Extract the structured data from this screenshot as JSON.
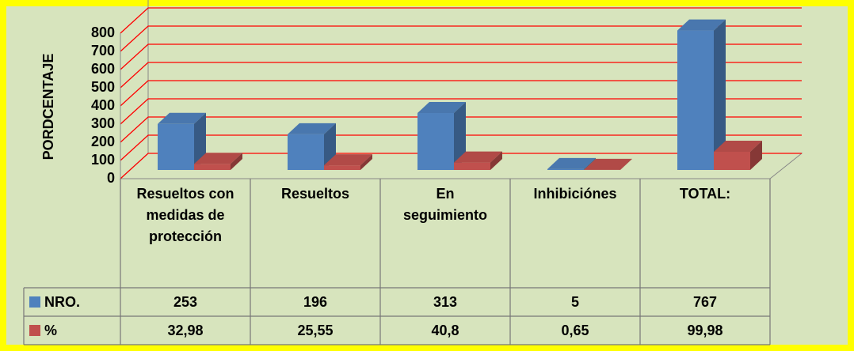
{
  "chart_data": {
    "type": "bar3d",
    "y_label": "PORDCENTAJE",
    "categories": [
      "Resueltos con medidas de protección",
      "Resueltos",
      "En seguimiento",
      "Inhibiciónes",
      "TOTAL:"
    ],
    "series": [
      {
        "name": "NRO.",
        "color": "#4f81bd",
        "values": [
          253,
          196,
          313,
          5,
          767
        ]
      },
      {
        "name": "%",
        "color": "#c0504d",
        "values": [
          32.98,
          25.55,
          40.8,
          0.65,
          99.98
        ],
        "value_labels": [
          "32,98",
          "25,55",
          "40,8",
          "0,65",
          "99,98"
        ]
      }
    ],
    "ylim": [
      0,
      800
    ],
    "yticks": [
      0,
      100,
      200,
      300,
      400,
      500,
      600,
      700,
      800
    ],
    "grid": true,
    "grid_color": "#ff0000"
  }
}
